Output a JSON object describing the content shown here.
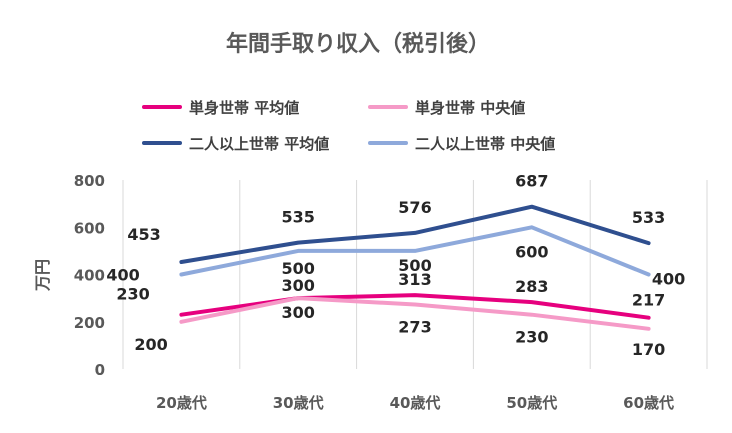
{
  "chart_data": {
    "type": "line",
    "title": "年間手取り収入（税引後）",
    "ylabel": "万円",
    "xlabel": "",
    "categories": [
      "20歳代",
      "30歳代",
      "40歳代",
      "50歳代",
      "60歳代"
    ],
    "ylim": [
      0,
      800
    ],
    "yticks": [
      0,
      200,
      400,
      600,
      800
    ],
    "grid": "vertical",
    "legend_position": "top",
    "series": [
      {
        "name": "単身世帯 平均値",
        "color": "#e6007e",
        "values": [
          230,
          300,
          313,
          283,
          217
        ]
      },
      {
        "name": "単身世帯 中央値",
        "color": "#f59ac7",
        "values": [
          200,
          300,
          273,
          230,
          170
        ]
      },
      {
        "name": "二人以上世帯 平均値",
        "color": "#2f4f8f",
        "values": [
          453,
          535,
          576,
          687,
          533
        ]
      },
      {
        "name": "二人以上世帯 中央値",
        "color": "#8ea9db",
        "values": [
          400,
          500,
          500,
          600,
          400
        ]
      }
    ]
  }
}
